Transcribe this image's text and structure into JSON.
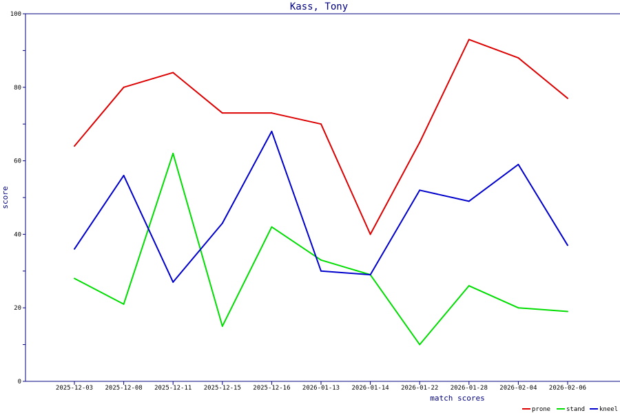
{
  "chart_data": {
    "type": "line",
    "title": "Kass, Tony",
    "xlabel": "match scores",
    "ylabel": "score",
    "ylim": [
      0,
      100
    ],
    "yticks": [
      0,
      20,
      40,
      60,
      80,
      100
    ],
    "grid": false,
    "legend_placement": "bottom-right",
    "categories": [
      "2025-12-03",
      "2025-12-08",
      "2025-12-11",
      "2025-12-15",
      "2025-12-16",
      "2026-01-13",
      "2026-01-14",
      "2026-01-22",
      "2026-01-28",
      "2026-02-04",
      "2026-02-06"
    ],
    "series": [
      {
        "name": "prone",
        "color": "#dd0000",
        "values": [
          64,
          80,
          84,
          73,
          73,
          70,
          40,
          65,
          93,
          88,
          77
        ]
      },
      {
        "name": "stand",
        "color": "#00dd00",
        "values": [
          28,
          21,
          62,
          15,
          42,
          33,
          29,
          10,
          26,
          20,
          19
        ]
      },
      {
        "name": "kneel",
        "color": "#0000cc",
        "values": [
          36,
          56,
          27,
          43,
          68,
          30,
          29,
          52,
          49,
          59,
          37
        ]
      }
    ]
  }
}
